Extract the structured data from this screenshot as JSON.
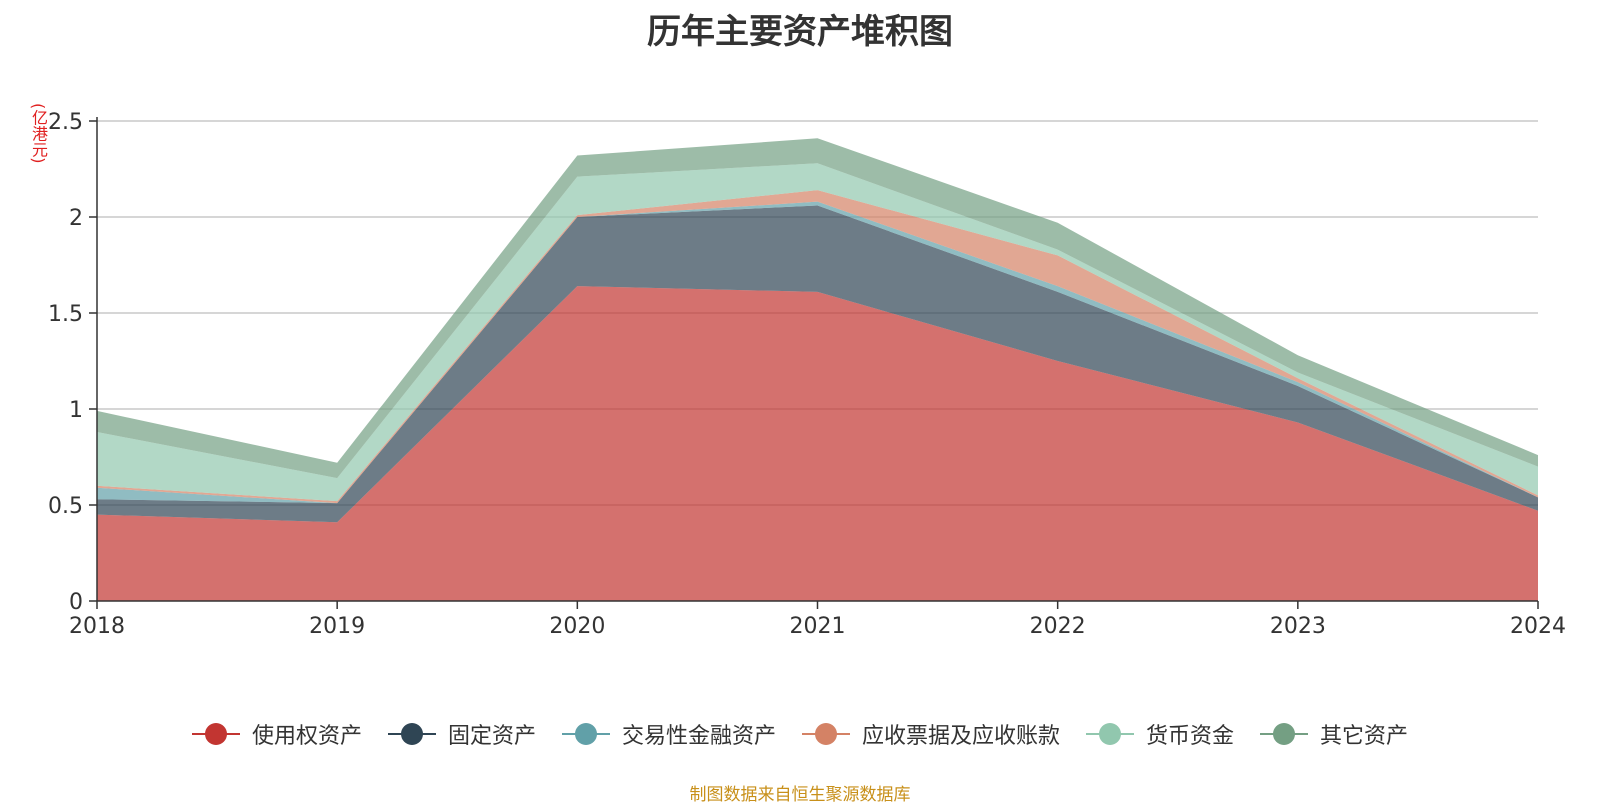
{
  "chart_data": {
    "type": "area",
    "title": "历年主要资产堆积图",
    "unit": "(亿港元)",
    "source": "制图数据来自恒生聚源数据库",
    "x": [
      "2018",
      "2019",
      "2020",
      "2021",
      "2022",
      "2023",
      "2024"
    ],
    "ylim": [
      0,
      2.5
    ],
    "yticks": [
      "0",
      "0.5",
      "1",
      "1.5",
      "2",
      "2.5"
    ],
    "grid": true,
    "legend_position": "bottom",
    "series": [
      {
        "name": "使用权资产",
        "color": "#c23531",
        "values": [
          0.45,
          0.41,
          1.64,
          1.61,
          1.25,
          0.93,
          0.47
        ]
      },
      {
        "name": "固定资产",
        "color": "#2f4554",
        "values": [
          0.08,
          0.1,
          0.36,
          0.45,
          0.36,
          0.19,
          0.07
        ]
      },
      {
        "name": "交易性金融资产",
        "color": "#61a0a8",
        "values": [
          0.06,
          0.0,
          0.0,
          0.02,
          0.03,
          0.02,
          0.0
        ]
      },
      {
        "name": "应收票据及应收账款",
        "color": "#d48265",
        "values": [
          0.01,
          0.01,
          0.01,
          0.06,
          0.16,
          0.02,
          0.01
        ]
      },
      {
        "name": "货币资金",
        "color": "#91c7ae",
        "values": [
          0.28,
          0.12,
          0.2,
          0.14,
          0.03,
          0.03,
          0.15
        ]
      },
      {
        "name": "其它资产",
        "color": "#749f83",
        "values": [
          0.11,
          0.08,
          0.11,
          0.13,
          0.14,
          0.09,
          0.06
        ]
      }
    ]
  }
}
